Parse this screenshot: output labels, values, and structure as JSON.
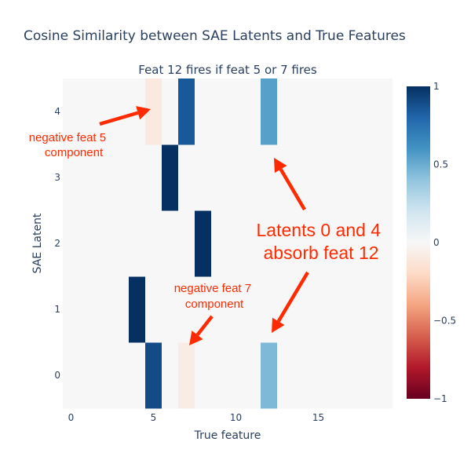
{
  "chart_data": {
    "type": "heatmap",
    "title": "Cosine Similarity between SAE Latents and True Features",
    "subtitle": "Feat 12 fires if feat 5 or 7 fires",
    "xlabel": "True feature",
    "ylabel": "SAE Latent",
    "x": [
      0,
      1,
      2,
      3,
      4,
      5,
      6,
      7,
      8,
      9,
      10,
      11,
      12,
      13,
      14,
      15,
      16,
      17,
      18,
      19
    ],
    "y": [
      0,
      1,
      2,
      3,
      4
    ],
    "x_ticks": [
      "0",
      "5",
      "10",
      "15"
    ],
    "y_ticks": [
      "0",
      "1",
      "2",
      "3",
      "4"
    ],
    "z": [
      [
        0,
        0,
        0,
        0,
        0,
        0.9,
        0,
        -0.08,
        0,
        0,
        0,
        0,
        0.45,
        0,
        0,
        0,
        0,
        0,
        0,
        0
      ],
      [
        0,
        0,
        0,
        0,
        1.0,
        0,
        0,
        0,
        0,
        0,
        0,
        0,
        0,
        0,
        0,
        0,
        0,
        0,
        0,
        0
      ],
      [
        0,
        0,
        0,
        0,
        0,
        0,
        0,
        0,
        1.0,
        0,
        0,
        0,
        0,
        0,
        0,
        0,
        0,
        0,
        0,
        0
      ],
      [
        0,
        0,
        0,
        0,
        0,
        0,
        1.0,
        0,
        0,
        0,
        0,
        0,
        0,
        0,
        0,
        0,
        0,
        0,
        0,
        0
      ],
      [
        0,
        0,
        0,
        0,
        0,
        -0.1,
        0,
        0.85,
        0,
        0,
        0,
        0,
        0.55,
        0,
        0,
        0,
        0,
        0,
        0,
        0
      ]
    ],
    "zlim": [
      -1,
      1
    ],
    "colorscale": "RdBu",
    "colorscale_stops": [
      "#67001f",
      "#b2182b",
      "#d6604d",
      "#f4a582",
      "#fddbc7",
      "#f7f7f7",
      "#d1e5f0",
      "#92c5de",
      "#4393c3",
      "#2166ac",
      "#053061"
    ],
    "colorbar_ticks": [
      "1",
      "0.5",
      "0",
      "−0.5",
      "−1"
    ],
    "colorbar_tick_values": [
      1,
      0.5,
      0,
      -0.5,
      -1
    ],
    "annotations": [
      {
        "lines": [
          "negative feat 5",
          "component"
        ]
      },
      {
        "lines": [
          "Latents 0 and 4",
          "absorb feat 12"
        ]
      },
      {
        "lines": [
          "negative feat 7",
          "component"
        ]
      }
    ],
    "annotation_color": "#ff2a00"
  }
}
